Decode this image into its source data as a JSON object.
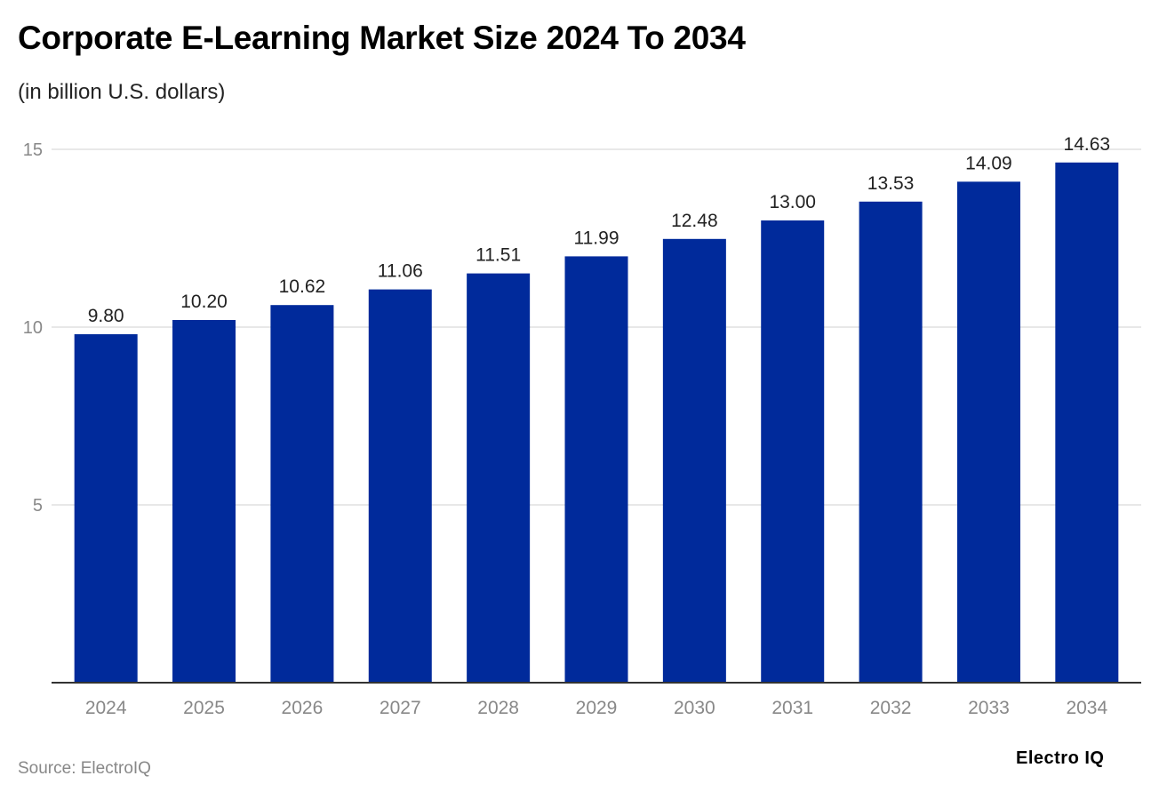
{
  "title": "Corporate E-Learning Market Size 2024 To 2034",
  "subtitle": "(in billion U.S. dollars)",
  "source": "Source: ElectroIQ",
  "logo": "Electro IQ",
  "colors": {
    "bar": "#002a9b",
    "grid": "#e0e0e0",
    "tick": "#888888",
    "axis": "#333333"
  },
  "chart_data": {
    "type": "bar",
    "title": "Corporate E-Learning Market Size 2024 To 2034",
    "ylabel": "in billion U.S. dollars",
    "xlabel": "",
    "categories": [
      "2024",
      "2025",
      "2026",
      "2027",
      "2028",
      "2029",
      "2030",
      "2031",
      "2032",
      "2033",
      "2034"
    ],
    "values": [
      9.8,
      10.2,
      10.62,
      11.06,
      11.51,
      11.99,
      12.48,
      13.0,
      13.53,
      14.09,
      14.63
    ],
    "labels": [
      "9.80",
      "10.20",
      "10.62",
      "11.06",
      "11.51",
      "11.99",
      "12.48",
      "13.00",
      "13.53",
      "14.09",
      "14.63"
    ],
    "yticks": [
      5,
      10,
      15
    ],
    "ytick_labels": [
      "5",
      "10",
      "15"
    ],
    "ylim": [
      0,
      15
    ],
    "grid": true
  }
}
